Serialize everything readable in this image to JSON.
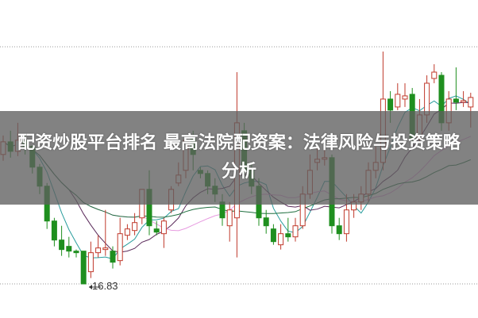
{
  "overlay": {
    "title": "配资炒股平台排名 最高法院配资案：法律风险与投资策略分析"
  },
  "chart_data": {
    "type": "candlestick",
    "low_annotation": {
      "label": "16.83",
      "value": 16.83
    },
    "ylim": [
      16.5,
      31.8
    ],
    "grid": "dotted horizontal top and bottom",
    "colors": {
      "up": "#c0392b",
      "down": "#1f8f1f",
      "ma_lines": [
        "#2a9d9d",
        "#5a2a5a",
        "#e79be0",
        "#1f6f3f"
      ]
    },
    "candles": [
      [
        25.0,
        25.8,
        26.2,
        24.6
      ],
      [
        25.8,
        25.2,
        26.5,
        24.8
      ],
      [
        25.2,
        25.9,
        27.0,
        24.9
      ],
      [
        25.9,
        25.5,
        26.3,
        25.0
      ],
      [
        25.5,
        24.2,
        25.6,
        23.8
      ],
      [
        24.2,
        23.0,
        24.4,
        22.5
      ],
      [
        23.0,
        20.8,
        23.2,
        20.3
      ],
      [
        20.8,
        19.6,
        21.0,
        19.2
      ],
      [
        19.6,
        19.0,
        20.5,
        18.6
      ],
      [
        19.2,
        18.9,
        19.8,
        18.5
      ],
      [
        18.9,
        18.8,
        19.0,
        18.5
      ],
      [
        18.9,
        16.83,
        18.9,
        16.83
      ],
      [
        17.6,
        18.8,
        19.5,
        17.2
      ],
      [
        18.8,
        19.1,
        19.9,
        18.5
      ],
      [
        19.0,
        19.1,
        21.5,
        18.6
      ],
      [
        18.9,
        18.2,
        19.2,
        17.8
      ],
      [
        18.3,
        20.0,
        21.0,
        18.0
      ],
      [
        19.9,
        20.3,
        20.6,
        19.6
      ],
      [
        20.2,
        20.7,
        21.3,
        19.9
      ],
      [
        21.0,
        22.8,
        22.8,
        20.6
      ],
      [
        22.8,
        20.5,
        24.0,
        19.9
      ],
      [
        20.3,
        20.1,
        20.8,
        19.9
      ],
      [
        20.0,
        20.8,
        21.0,
        19.1
      ],
      [
        21.5,
        22.8,
        23.0,
        21.3
      ],
      [
        23.2,
        23.7,
        24.5,
        23.0
      ],
      [
        24.0,
        25.9,
        26.0,
        23.5
      ],
      [
        26.0,
        25.0,
        26.5,
        24.0
      ],
      [
        24.0,
        23.8,
        24.2,
        23.5
      ],
      [
        23.8,
        23.0,
        24.0,
        22.5
      ],
      [
        23.0,
        22.5,
        23.5,
        22.0
      ],
      [
        22.0,
        21.0,
        22.5,
        20.5
      ],
      [
        20.5,
        21.5,
        22.0,
        19.5
      ],
      [
        21.0,
        27.0,
        30.2,
        18.5
      ],
      [
        26.5,
        24.0,
        27.0,
        23.5
      ],
      [
        24.0,
        23.0,
        24.5,
        22.5
      ],
      [
        23.0,
        21.0,
        23.5,
        20.5
      ],
      [
        21.0,
        20.5,
        21.5,
        20.0
      ],
      [
        20.3,
        19.5,
        20.6,
        19.3
      ],
      [
        19.3,
        20.0,
        20.6,
        19.0
      ],
      [
        20.0,
        19.8,
        21.0,
        19.5
      ],
      [
        19.8,
        20.5,
        21.0,
        19.5
      ],
      [
        20.5,
        22.5,
        23.0,
        20.3
      ],
      [
        22.5,
        24.0,
        25.0,
        22.2
      ],
      [
        24.5,
        24.7,
        25.5,
        24.0
      ],
      [
        24.7,
        24.8,
        25.3,
        24.3
      ],
      [
        24.8,
        20.5,
        25.0,
        20.0
      ],
      [
        20.5,
        20.0,
        21.0,
        19.6
      ],
      [
        20.0,
        21.5,
        22.5,
        19.5
      ],
      [
        21.5,
        22.0,
        22.5,
        21.0
      ],
      [
        22.0,
        22.5,
        23.0,
        21.5
      ],
      [
        22.5,
        24.0,
        24.5,
        22.0
      ],
      [
        24.0,
        24.5,
        25.5,
        23.5
      ],
      [
        24.5,
        28.5,
        31.5,
        24.0
      ],
      [
        28.5,
        27.8,
        29.0,
        27.0
      ],
      [
        28.0,
        28.8,
        29.5,
        27.8
      ],
      [
        28.5,
        28.7,
        29.5,
        28.0
      ],
      [
        28.8,
        26.0,
        29.2,
        25.5
      ],
      [
        26.0,
        27.5,
        28.5,
        25.8
      ],
      [
        27.5,
        29.5,
        30.0,
        27.0
      ],
      [
        29.8,
        30.2,
        30.7,
        29.5
      ],
      [
        30.0,
        27.0,
        30.2,
        26.5
      ],
      [
        27.0,
        28.5,
        29.0,
        26.5
      ],
      [
        28.5,
        28.3,
        30.5,
        27.8
      ],
      [
        28.3,
        28.4,
        29.0,
        28.0
      ],
      [
        28.0,
        28.6,
        28.9,
        26.7
      ]
    ]
  }
}
